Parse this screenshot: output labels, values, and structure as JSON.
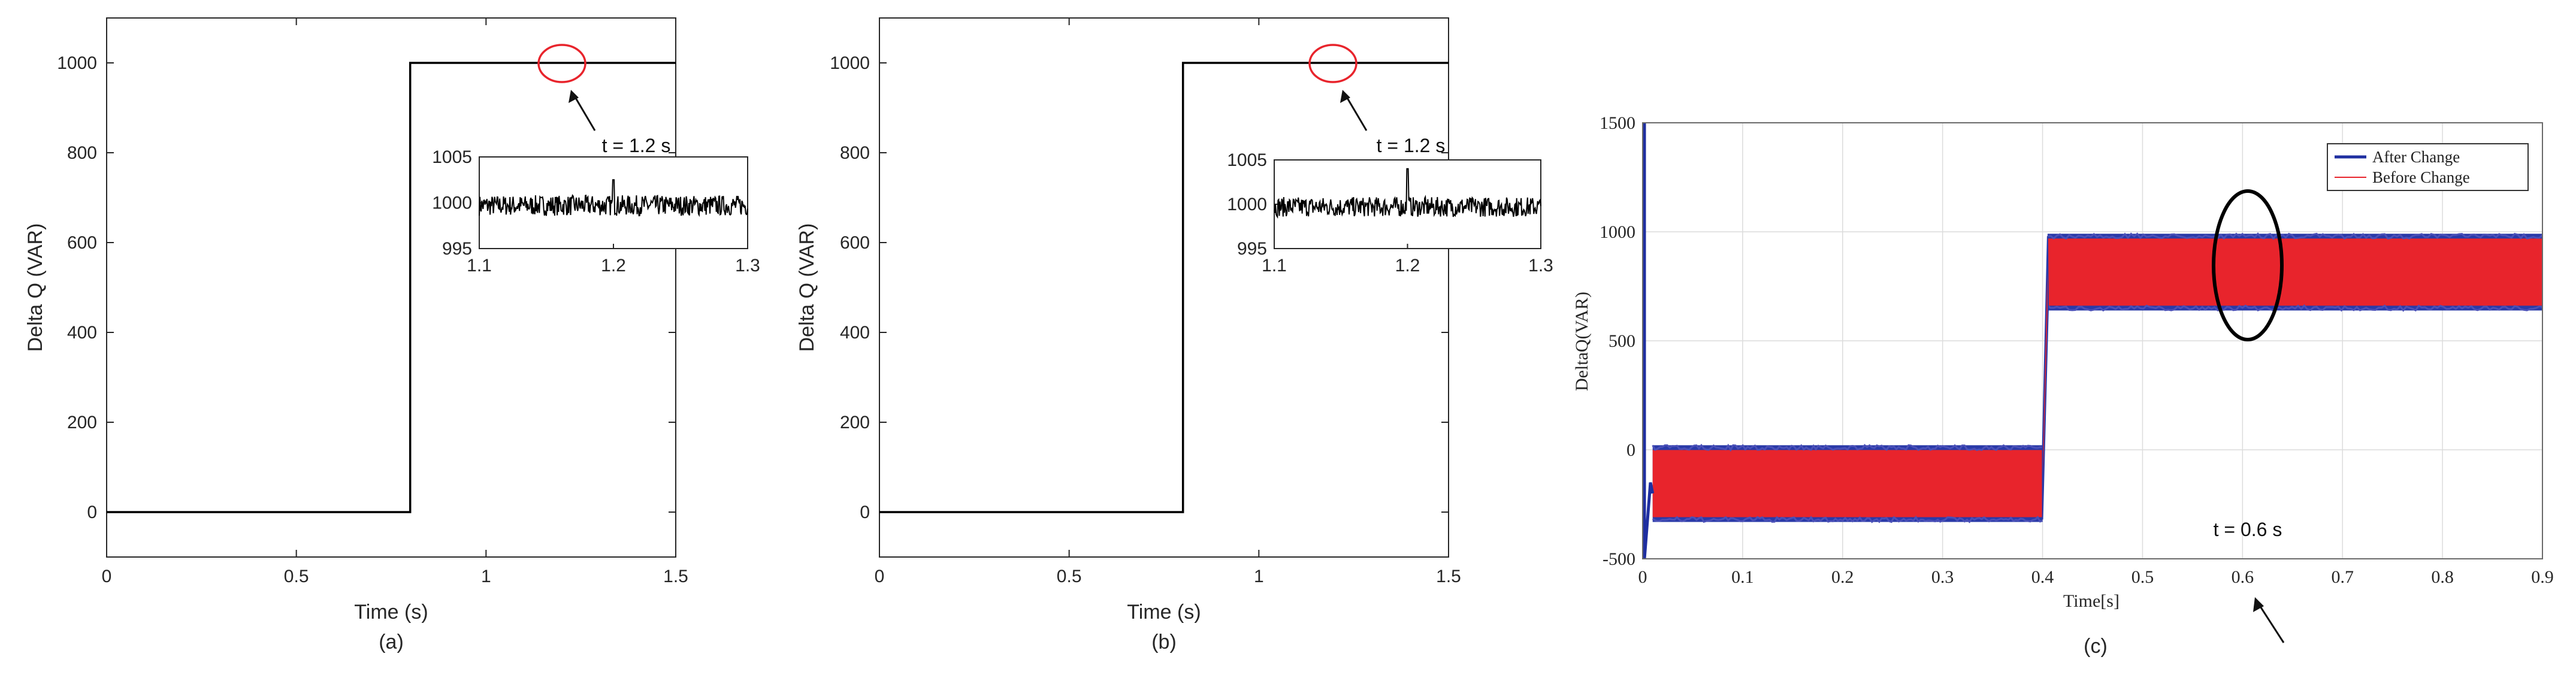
{
  "chart_data": [
    {
      "type": "line",
      "panel_label": "(a)",
      "xlabel": "Time (s)",
      "ylabel": "Delta Q (VAR)",
      "xlim": [
        0,
        1.5
      ],
      "ylim": [
        -100,
        1100
      ],
      "xticks": [
        "0",
        "0.5",
        "1",
        "1.5"
      ],
      "yticks": [
        "0",
        "200",
        "400",
        "600",
        "800",
        "1000"
      ],
      "grid": false,
      "series": [
        {
          "x": [
            0,
            0.8,
            0.8,
            1.5
          ],
          "y": [
            0,
            0,
            1000,
            1000
          ],
          "color": "#000000"
        }
      ],
      "annotation": {
        "text": "t = 1.2 s",
        "circle_at": [
          1.2,
          1000
        ]
      },
      "inset": {
        "xlim": [
          1.1,
          1.3
        ],
        "ylim": [
          995,
          1005
        ],
        "xticks": [
          "1.1",
          "1.2",
          "1.3"
        ],
        "yticks": [
          "995",
          "1000",
          "1005"
        ],
        "noise_amplitude": 0.7,
        "spike": {
          "x": 1.2,
          "y": 1002.5
        }
      }
    },
    {
      "type": "line",
      "panel_label": "(b)",
      "xlabel": "Time (s)",
      "ylabel": "Delta Q (VAR)",
      "xlim": [
        0,
        1.5
      ],
      "ylim": [
        -100,
        1100
      ],
      "xticks": [
        "0",
        "0.5",
        "1",
        "1.5"
      ],
      "yticks": [
        "0",
        "200",
        "400",
        "600",
        "800",
        "1000"
      ],
      "grid": false,
      "series": [
        {
          "x": [
            0,
            0.8,
            0.8,
            1.5
          ],
          "y": [
            0,
            0,
            1000,
            1000
          ],
          "color": "#000000"
        }
      ],
      "annotation": {
        "text": "t = 1.2 s",
        "circle_at": [
          1.2,
          1000
        ]
      },
      "inset": {
        "xlim": [
          1.1,
          1.3
        ],
        "ylim": [
          995,
          1005
        ],
        "xticks": [
          "1.1",
          "1.2",
          "1.3"
        ],
        "yticks": [
          "995",
          "1000",
          "1005"
        ],
        "noise_amplitude": 0.7,
        "spike": {
          "x": 1.2,
          "y": 1004
        }
      }
    },
    {
      "type": "line",
      "panel_label": "(c)",
      "xlabel": "Time[s]",
      "ylabel": "DeltaQ(VAR)",
      "xlim": [
        0,
        0.9
      ],
      "ylim": [
        -500,
        1500
      ],
      "xticks": [
        "0",
        "0.1",
        "0.2",
        "0.3",
        "0.4",
        "0.5",
        "0.6",
        "0.7",
        "0.8",
        "0.9"
      ],
      "yticks": [
        "-500",
        "0",
        "500",
        "1000",
        "1500"
      ],
      "grid": true,
      "legend": {
        "position": "top-right",
        "entries": [
          {
            "name": "After Change",
            "color": "#1f2fa0"
          },
          {
            "name": "Before Change",
            "color": "#e8242c"
          }
        ]
      },
      "bands": [
        {
          "x": [
            0.01,
            0.4
          ],
          "y_low": -320,
          "y_high": 10
        },
        {
          "x": [
            0.405,
            0.9
          ],
          "y_low": 650,
          "y_high": 980
        }
      ],
      "initial_spike": {
        "x": 0,
        "y_max": 1500,
        "y_min": -500
      },
      "annotation": {
        "text": "t = 0.6 s",
        "ellipse_at": [
          0.6,
          820
        ]
      }
    }
  ]
}
